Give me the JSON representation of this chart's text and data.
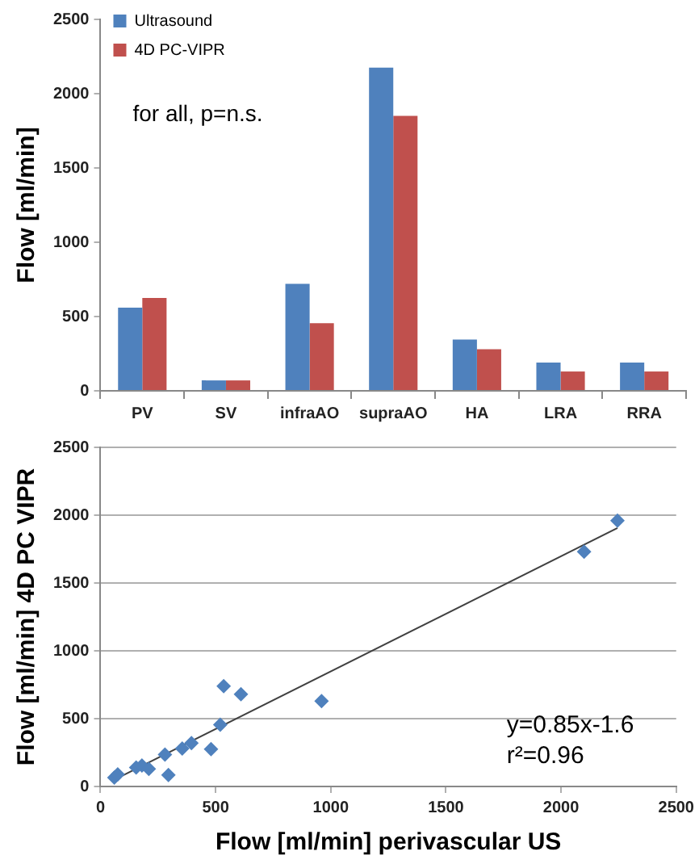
{
  "chart_data": [
    {
      "type": "bar",
      "ylabel": "Flow [ml/min]",
      "categories": [
        "PV",
        "SV",
        "infraAO",
        "supraAO",
        "HA",
        "LRA",
        "RRA"
      ],
      "ylim": [
        0,
        2500
      ],
      "yticks": [
        0,
        500,
        1000,
        1500,
        2000,
        2500
      ],
      "legend": "top left",
      "annotations": [
        "for all, p=n.s."
      ],
      "series": [
        {
          "name": "Ultrasound",
          "color": "#4f81bd",
          "values": [
            560,
            70,
            720,
            2175,
            345,
            190,
            190
          ]
        },
        {
          "name": "4D PC-VIPR",
          "color": "#c0504d",
          "values": [
            625,
            70,
            455,
            1850,
            280,
            130,
            130
          ]
        }
      ]
    },
    {
      "type": "scatter",
      "xlabel": "Flow [ml/min] perivascular US",
      "ylabel": "Flow [ml/min] 4D PC VIPR",
      "xlim": [
        0,
        2500
      ],
      "xticks": [
        0,
        500,
        1000,
        1500,
        2000,
        2500
      ],
      "ylim": [
        0,
        2500
      ],
      "yticks": [
        0,
        500,
        1000,
        1500,
        2000,
        2500
      ],
      "grid": "y",
      "marker": "diamond",
      "annotations": [
        "y=0.85x-1.6",
        "r²=0.96"
      ],
      "x": [
        60,
        75,
        155,
        180,
        210,
        280,
        295,
        355,
        395,
        480,
        520,
        535,
        610,
        960,
        2100,
        2245
      ],
      "series": [
        {
          "color": "#4f81bd",
          "values": [
            65,
            90,
            140,
            155,
            130,
            235,
            85,
            280,
            320,
            275,
            455,
            740,
            680,
            630,
            1730,
            1960
          ]
        },
        {
          "type": "line",
          "color": "#404040",
          "marker": "none",
          "x": [
            60,
            2245
          ],
          "values": [
            50,
            1905
          ]
        }
      ]
    }
  ]
}
